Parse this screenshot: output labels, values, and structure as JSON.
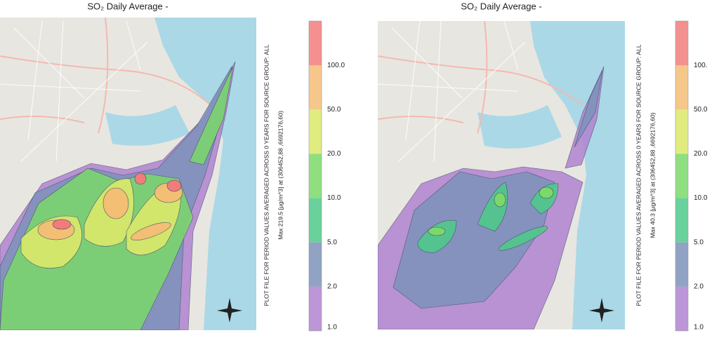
{
  "panels": [
    {
      "title": "SO₂ Daily Average -",
      "caption": "PLOT FILE FOR PERIOD VALUES AVERAGED ACROSS 0 YEARS FOR SOURCE GROUP: ALL",
      "max_text": "Max 219.5 [µg/m^3] at (306452,88 ,6692176,60)",
      "legend": {
        "labels": [
          "1.0",
          "2.0",
          "5.0",
          "10.0",
          "20.0",
          "50.0",
          "100.0"
        ],
        "colors": [
          "#b084d0",
          "#7d93bb",
          "#4fc98a",
          "#7bd96a",
          "#dbe96a",
          "#f4bd75",
          "#f27c7c"
        ]
      }
    },
    {
      "title": "SO₂ Daily Average -",
      "caption": "PLOT FILE FOR PERIOD VALUES AVERAGED ACROSS 0 YEARS FOR SOURCE GROUP: ALL",
      "max_text": "Max 40.3 [µg/m^3] at (306452,88 ,6692176,60)",
      "legend": {
        "labels": [
          "1.0",
          "2.0",
          "5.0",
          "10.0",
          "20.0",
          "50.0",
          "100."
        ],
        "colors": [
          "#b084d0",
          "#7d93bb",
          "#4fc98a",
          "#7bd96a",
          "#dbe96a",
          "#f4bd75",
          "#f27c7c"
        ]
      }
    }
  ]
}
